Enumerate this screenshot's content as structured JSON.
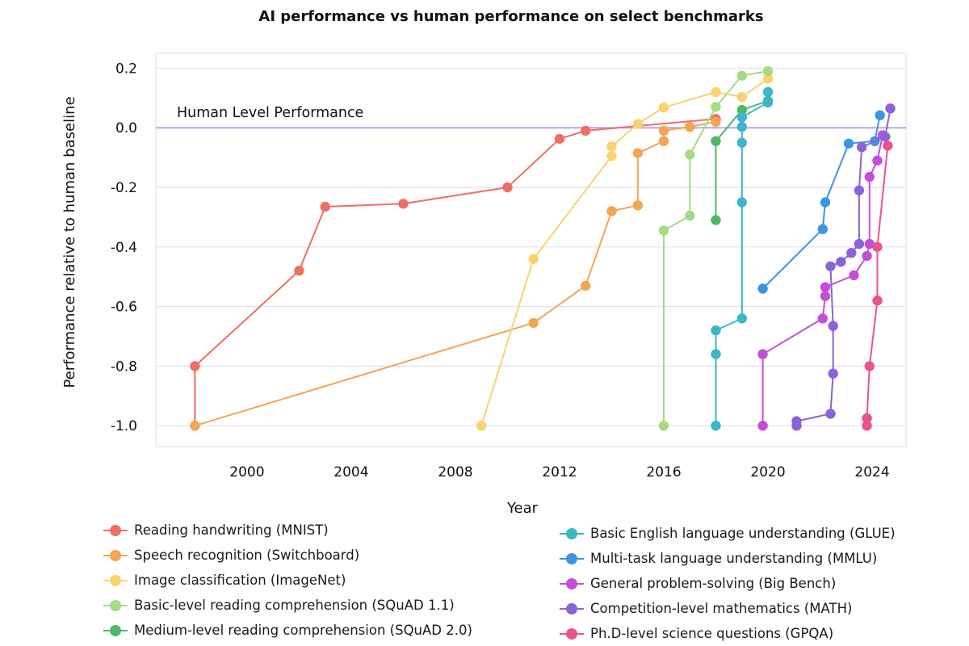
{
  "chart_data": {
    "type": "line",
    "title": "AI performance vs human performance on select benchmarks",
    "xlabel": "Year",
    "ylabel": "Performance relative to human baseline",
    "xlim": [
      1996.5,
      2025.3
    ],
    "ylim": [
      -1.07,
      0.25
    ],
    "xticks": [
      2000,
      2004,
      2008,
      2012,
      2016,
      2020,
      2024
    ],
    "yticks": [
      0.2,
      0.0,
      -0.2,
      -0.4,
      -0.6,
      -0.8,
      -1.0
    ],
    "ytick_labels": [
      "0.2",
      "0.0",
      "-0.2",
      "-0.4",
      "-0.6",
      "-0.8",
      "-1.0"
    ],
    "grid": true,
    "reference_line": {
      "y": 0.0,
      "label": "Human Level Performance",
      "color": "#b9a6ee"
    },
    "series": [
      {
        "name": "Reading handwriting (MNIST)",
        "color": "#ee6f66",
        "points": [
          [
            1998,
            -1.0
          ],
          [
            1998,
            -0.8
          ],
          [
            2002,
            -0.48
          ],
          [
            2003,
            -0.265
          ],
          [
            2006,
            -0.255
          ],
          [
            2010,
            -0.2
          ],
          [
            2012,
            -0.037
          ],
          [
            2013,
            -0.01
          ],
          [
            2018,
            0.03
          ]
        ]
      },
      {
        "name": "Speech recognition (Switchboard)",
        "color": "#f3a552",
        "points": [
          [
            1998,
            -1.0
          ],
          [
            2011,
            -0.655
          ],
          [
            2013,
            -0.53
          ],
          [
            2014,
            -0.28
          ],
          [
            2015,
            -0.26
          ],
          [
            2015,
            -0.085
          ],
          [
            2016,
            -0.045
          ],
          [
            2016,
            -0.01
          ],
          [
            2017,
            0.003
          ],
          [
            2018,
            0.02
          ]
        ]
      },
      {
        "name": "Image classification (ImageNet)",
        "color": "#f9d36e",
        "points": [
          [
            2009,
            -1.0
          ],
          [
            2011,
            -0.44
          ],
          [
            2014,
            -0.095
          ],
          [
            2014,
            -0.063
          ],
          [
            2015,
            0.013
          ],
          [
            2016,
            0.068
          ],
          [
            2018,
            0.12
          ],
          [
            2019,
            0.103
          ],
          [
            2020,
            0.165
          ]
        ]
      },
      {
        "name": "Basic-level reading comprehension (SQuAD 1.1)",
        "color": "#a6db82",
        "points": [
          [
            2016,
            -1.0
          ],
          [
            2016,
            -0.345
          ],
          [
            2017,
            -0.295
          ],
          [
            2017,
            -0.09
          ],
          [
            2018,
            0.07
          ],
          [
            2019,
            0.175
          ],
          [
            2020,
            0.19
          ]
        ]
      },
      {
        "name": "Medium-level reading comprehension (SQuAD 2.0)",
        "color": "#4fb866",
        "points": [
          [
            2018,
            -0.31
          ],
          [
            2018,
            -0.045
          ],
          [
            2019,
            0.06
          ],
          [
            2020,
            0.09
          ]
        ]
      },
      {
        "name": "Basic English language understanding (GLUE)",
        "color": "#3db6c6",
        "points": [
          [
            2018,
            -1.0
          ],
          [
            2018,
            -0.76
          ],
          [
            2018,
            -0.68
          ],
          [
            2019,
            -0.64
          ],
          [
            2019,
            -0.25
          ],
          [
            2019,
            -0.05
          ],
          [
            2019,
            0.003
          ],
          [
            2019,
            0.035
          ],
          [
            2020,
            0.085
          ],
          [
            2020,
            0.12
          ]
        ]
      },
      {
        "name": "Multi-task language understanding (MMLU)",
        "color": "#3d95e0",
        "points": [
          [
            2019.8,
            -0.54
          ],
          [
            2022.1,
            -0.34
          ],
          [
            2022.2,
            -0.25
          ],
          [
            2023.1,
            -0.053
          ],
          [
            2024.1,
            -0.045
          ],
          [
            2024.3,
            0.042
          ]
        ]
      },
      {
        "name": "General problem-solving (Big Bench)",
        "color": "#c44fd6",
        "points": [
          [
            2019.8,
            -1.0
          ],
          [
            2019.8,
            -0.76
          ],
          [
            2022.1,
            -0.64
          ],
          [
            2022.2,
            -0.565
          ],
          [
            2022.2,
            -0.535
          ],
          [
            2023.3,
            -0.495
          ],
          [
            2023.8,
            -0.43
          ],
          [
            2023.9,
            -0.39
          ],
          [
            2023.9,
            -0.165
          ],
          [
            2024.2,
            -0.11
          ],
          [
            2024.4,
            -0.025
          ]
        ]
      },
      {
        "name": "Competition-level mathematics (MATH)",
        "color": "#8b63d9",
        "points": [
          [
            2021.1,
            -1.0
          ],
          [
            2021.1,
            -0.985
          ],
          [
            2022.4,
            -0.96
          ],
          [
            2022.5,
            -0.825
          ],
          [
            2022.5,
            -0.665
          ],
          [
            2022.4,
            -0.465
          ],
          [
            2022.8,
            -0.45
          ],
          [
            2023.2,
            -0.42
          ],
          [
            2023.5,
            -0.39
          ],
          [
            2023.5,
            -0.21
          ],
          [
            2023.6,
            -0.065
          ],
          [
            2024.5,
            -0.03
          ],
          [
            2024.7,
            0.065
          ]
        ]
      },
      {
        "name": "Ph.D-level science questions (GPQA)",
        "color": "#e9548d",
        "points": [
          [
            2023.8,
            -1.0
          ],
          [
            2023.8,
            -0.975
          ],
          [
            2023.9,
            -0.8
          ],
          [
            2024.2,
            -0.58
          ],
          [
            2024.2,
            -0.4
          ],
          [
            2024.6,
            -0.06
          ]
        ]
      }
    ]
  },
  "legend": {
    "left": [
      {
        "label": "Reading handwriting (MNIST)",
        "color": "#ee6f66"
      },
      {
        "label": "Speech recognition (Switchboard)",
        "color": "#f3a552"
      },
      {
        "label": "Image classification (ImageNet)",
        "color": "#f9d36e"
      },
      {
        "label": "Basic-level reading comprehension (SQuAD 1.1)",
        "color": "#a6db82"
      },
      {
        "label": "Medium-level reading comprehension (SQuAD 2.0)",
        "color": "#4fb866"
      }
    ],
    "right": [
      {
        "label": "Basic English language understanding (GLUE)",
        "color": "#3db6c6"
      },
      {
        "label": "Multi-task language understanding (MMLU)",
        "color": "#3d95e0"
      },
      {
        "label": "General problem-solving (Big Bench)",
        "color": "#c44fd6"
      },
      {
        "label": "Competition-level mathematics (MATH)",
        "color": "#8b63d9"
      },
      {
        "label": "Ph.D-level science questions (GPQA)",
        "color": "#e9548d"
      }
    ]
  }
}
